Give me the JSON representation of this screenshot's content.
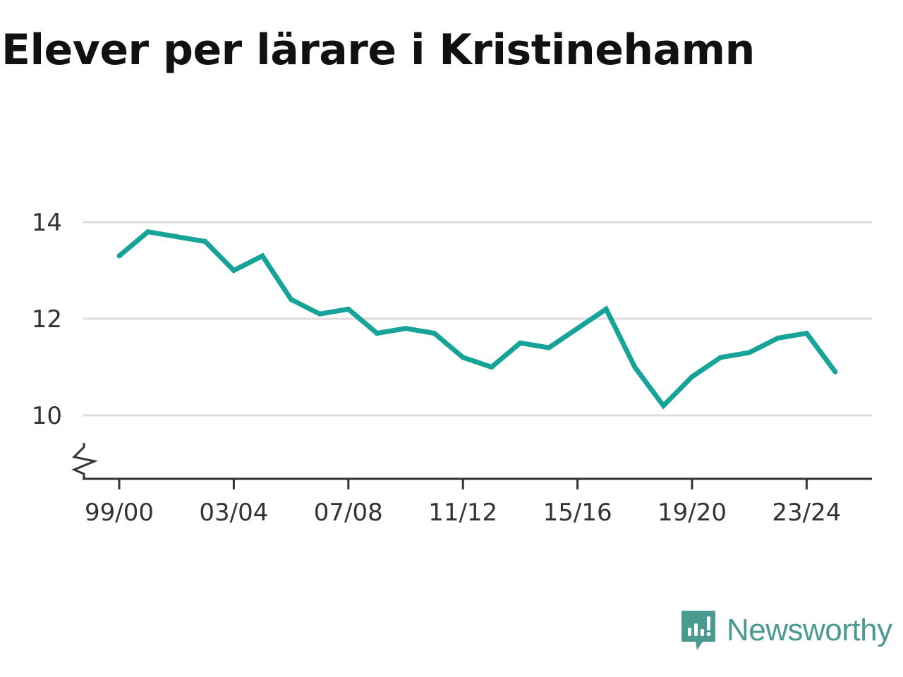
{
  "title": "Elever per lärare i Kristinehamn",
  "brand": {
    "name": "Newsworthy",
    "logo_icon": "newsworthy-logo-icon",
    "color": "#4a9a92"
  },
  "colors": {
    "line": "#17a397",
    "grid": "#dddddd",
    "axis": "#333333"
  },
  "chart_data": {
    "type": "line",
    "title": "Elever per lärare i Kristinehamn",
    "xlabel": "",
    "ylabel": "",
    "x": [
      "99/00",
      "00/01",
      "01/02",
      "02/03",
      "03/04",
      "04/05",
      "05/06",
      "06/07",
      "07/08",
      "08/09",
      "09/10",
      "10/11",
      "11/12",
      "12/13",
      "13/14",
      "14/15",
      "15/16",
      "16/17",
      "17/18",
      "18/19",
      "19/20",
      "20/21",
      "21/22",
      "22/23",
      "23/24",
      "24/25"
    ],
    "series": [
      {
        "values": [
          13.3,
          13.8,
          13.7,
          13.6,
          13.0,
          13.3,
          12.4,
          12.1,
          12.2,
          11.7,
          11.8,
          11.7,
          11.2,
          11.0,
          11.5,
          11.4,
          11.8,
          12.2,
          11.0,
          10.2,
          10.8,
          11.2,
          11.3,
          11.6,
          11.7,
          10.9
        ]
      }
    ],
    "x_tick_labels": [
      "99/00",
      "03/04",
      "07/08",
      "11/12",
      "15/16",
      "19/20",
      "23/24"
    ],
    "y_ticks": [
      10,
      12,
      14
    ],
    "ylim": [
      8.7,
      14
    ],
    "y_axis_break": true,
    "grid": true,
    "legend": "none"
  }
}
